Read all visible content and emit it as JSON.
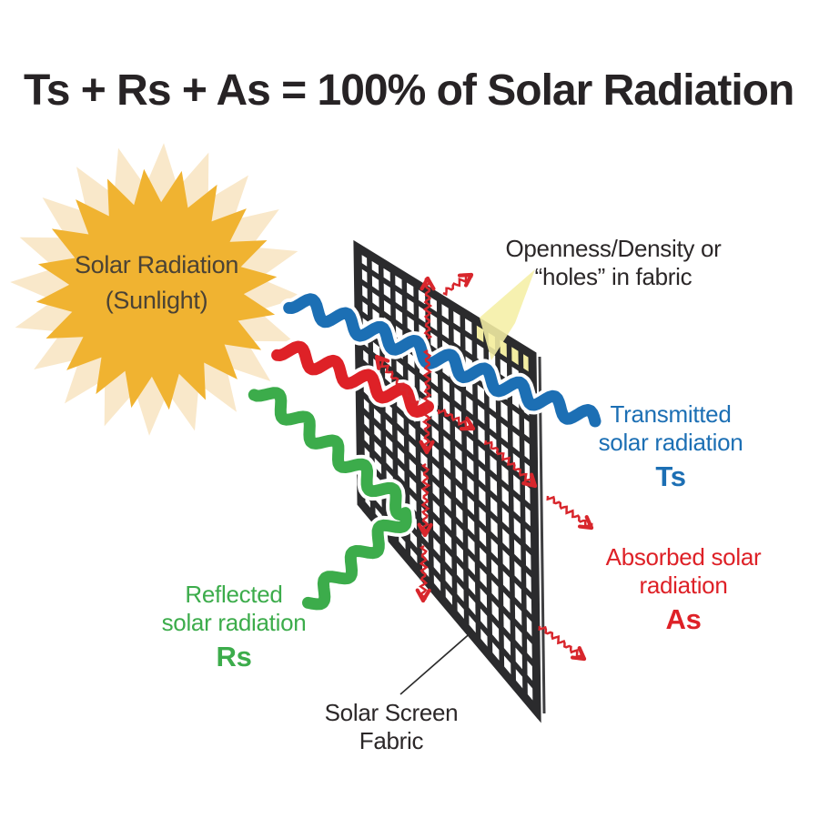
{
  "title": "Ts + Rs + As = 100% of Solar Radiation",
  "sun": {
    "line1": "Solar Radiation",
    "line2": "(Sunlight)"
  },
  "labels": {
    "openness": {
      "line1": "Openness/Density or",
      "line2": "“holes” in fabric"
    },
    "transmitted": {
      "line1": "Transmitted",
      "line2": "solar radiation",
      "symbol": "Ts"
    },
    "absorbed": {
      "line1": "Absorbed solar",
      "line2": "radiation",
      "symbol": "As"
    },
    "reflected": {
      "line1": "Reflected",
      "line2": "solar radiation",
      "symbol": "Rs"
    },
    "fabric": {
      "line1": "Solar Screen",
      "line2": "Fabric"
    }
  },
  "colors": {
    "title_dark": "#272325",
    "label_dark": "#2B2728",
    "sun": "#F0B331",
    "sun_halo": "#F9E8CA",
    "sun_text": "#4A4235",
    "transmitted_blue": "#1C6FB4",
    "absorbed_red": "#DE2127",
    "reflected_green": "#3CAC4B",
    "heat_red": "#D8262C",
    "grid_dark": "#2B2B2D",
    "cell_highlight": "#F3EDA2",
    "beam_yellow": "#F5EFA5"
  }
}
